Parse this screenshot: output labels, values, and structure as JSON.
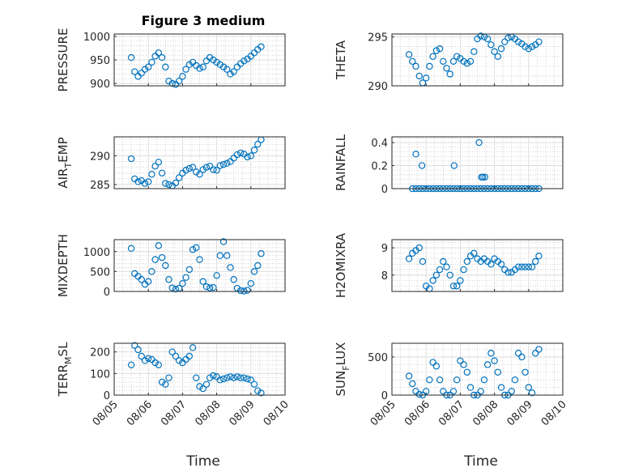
{
  "figure": {
    "title": "Figure 3 medium",
    "xlabel": "Time",
    "marker_color": "#0072BD",
    "grid": "major solid, minor dotted",
    "x_ticklabels": [
      "08/05",
      "08/06",
      "08/07",
      "08/08",
      "08/09",
      "08/10"
    ]
  },
  "chart_data": [
    {
      "id": "pressure",
      "type": "scatter",
      "ylabel": "PRESSURE",
      "ylim": [
        895,
        1005
      ],
      "yticks": [
        900,
        950,
        1000
      ],
      "x": [
        5.5,
        5.6,
        5.7,
        5.8,
        5.9,
        6.0,
        6.1,
        6.2,
        6.3,
        6.4,
        6.5,
        6.6,
        6.7,
        6.8,
        6.9,
        7.0,
        7.1,
        7.2,
        7.3,
        7.4,
        7.5,
        7.6,
        7.7,
        7.8,
        7.9,
        8.0,
        8.1,
        8.2,
        8.3,
        8.4,
        8.5,
        8.6,
        8.7,
        8.8,
        8.9,
        9.0,
        9.1,
        9.2,
        9.3
      ],
      "y": [
        955,
        925,
        915,
        922,
        930,
        935,
        945,
        958,
        965,
        955,
        935,
        905,
        900,
        898,
        905,
        915,
        930,
        940,
        945,
        938,
        932,
        935,
        948,
        955,
        950,
        945,
        940,
        935,
        930,
        920,
        925,
        935,
        942,
        948,
        952,
        958,
        965,
        972,
        978
      ]
    },
    {
      "id": "theta",
      "type": "scatter",
      "ylabel": "THETA",
      "ylim": [
        290,
        295.3
      ],
      "yticks": [
        290,
        295
      ],
      "x": [
        5.5,
        5.6,
        5.7,
        5.8,
        5.9,
        6.0,
        6.1,
        6.2,
        6.3,
        6.4,
        6.5,
        6.6,
        6.7,
        6.8,
        6.9,
        7.0,
        7.1,
        7.2,
        7.3,
        7.4,
        7.5,
        7.6,
        7.7,
        7.8,
        7.9,
        8.0,
        8.1,
        8.2,
        8.3,
        8.4,
        8.5,
        8.6,
        8.7,
        8.8,
        8.9,
        9.0,
        9.1,
        9.2,
        9.3
      ],
      "y": [
        293.2,
        292.5,
        292.0,
        291.0,
        290.3,
        290.8,
        292.0,
        293.0,
        293.6,
        293.8,
        292.5,
        291.8,
        291.2,
        292.5,
        293.0,
        292.8,
        292.5,
        292.3,
        292.5,
        293.5,
        294.8,
        295.1,
        295.0,
        294.8,
        294.2,
        293.5,
        293.0,
        293.8,
        294.5,
        294.9,
        295.0,
        294.8,
        294.5,
        294.3,
        294.0,
        293.8,
        294.0,
        294.2,
        294.5
      ]
    },
    {
      "id": "air_temp",
      "type": "scatter",
      "ylabel": "AIR_TEMP",
      "ylim": [
        284.3,
        293.3
      ],
      "yticks": [
        285,
        290
      ],
      "x": [
        5.5,
        5.6,
        5.7,
        5.8,
        5.9,
        6.0,
        6.1,
        6.2,
        6.3,
        6.4,
        6.5,
        6.6,
        6.7,
        6.8,
        6.9,
        7.0,
        7.1,
        7.2,
        7.3,
        7.4,
        7.5,
        7.6,
        7.7,
        7.8,
        7.9,
        8.0,
        8.1,
        8.2,
        8.3,
        8.4,
        8.5,
        8.6,
        8.7,
        8.8,
        8.9,
        9.0,
        9.1,
        9.2,
        9.3
      ],
      "y": [
        289.5,
        286.0,
        285.5,
        285.7,
        285.2,
        285.5,
        286.8,
        288.2,
        288.9,
        287.0,
        285.2,
        285.0,
        284.8,
        285.3,
        286.2,
        287.0,
        287.5,
        287.8,
        288.0,
        287.2,
        286.8,
        287.6,
        288.0,
        288.2,
        287.6,
        287.5,
        288.3,
        288.5,
        288.7,
        289.0,
        289.6,
        290.2,
        290.5,
        290.3,
        289.8,
        290.0,
        291.0,
        292.0,
        292.8
      ]
    },
    {
      "id": "rainfall",
      "type": "scatter",
      "ylabel": "RAINFALL",
      "ylim": [
        0,
        0.45
      ],
      "yticks": [
        0,
        0.2,
        0.4
      ],
      "yticklabels": [
        "0",
        "0.2",
        "0.4"
      ],
      "x": [
        5.6,
        5.7,
        5.8,
        5.9,
        6.0,
        6.1,
        6.2,
        6.3,
        6.4,
        6.5,
        6.6,
        6.7,
        6.8,
        6.9,
        7.0,
        7.1,
        7.2,
        7.3,
        7.4,
        7.5,
        7.6,
        7.7,
        7.8,
        7.9,
        8.0,
        8.1,
        8.2,
        8.3,
        8.4,
        8.5,
        8.6,
        8.7,
        8.8,
        8.9,
        9.0,
        9.1,
        9.2,
        9.3,
        5.7,
        5.88,
        6.82,
        7.55,
        7.62,
        7.66,
        7.72
      ],
      "y": [
        0,
        0,
        0,
        0,
        0,
        0,
        0,
        0,
        0,
        0,
        0,
        0,
        0,
        0,
        0,
        0,
        0,
        0,
        0,
        0,
        0,
        0,
        0,
        0,
        0,
        0,
        0,
        0,
        0,
        0,
        0,
        0,
        0,
        0,
        0,
        0,
        0,
        0,
        0.3,
        0.2,
        0.2,
        0.4,
        0.1,
        0.1,
        0.1
      ]
    },
    {
      "id": "mixdepth",
      "type": "scatter",
      "ylabel": "MIXDEPTH",
      "ylim": [
        0,
        1300
      ],
      "yticks": [
        0,
        500,
        1000
      ],
      "x": [
        5.5,
        5.6,
        5.7,
        5.8,
        5.9,
        6.0,
        6.1,
        6.2,
        6.3,
        6.4,
        6.5,
        6.6,
        6.7,
        6.8,
        6.9,
        7.0,
        7.1,
        7.2,
        7.3,
        7.4,
        7.5,
        7.6,
        7.7,
        7.8,
        7.9,
        8.0,
        8.1,
        8.2,
        8.3,
        8.4,
        8.5,
        8.6,
        8.7,
        8.8,
        8.9,
        9.0,
        9.1,
        9.2,
        9.3
      ],
      "y": [
        1080,
        450,
        380,
        300,
        180,
        250,
        500,
        800,
        1150,
        850,
        650,
        300,
        90,
        60,
        80,
        200,
        350,
        550,
        1050,
        1100,
        800,
        250,
        120,
        90,
        100,
        400,
        900,
        1250,
        900,
        600,
        300,
        80,
        20,
        10,
        30,
        200,
        500,
        650,
        950
      ]
    },
    {
      "id": "h2omixra",
      "type": "scatter",
      "ylabel": "H2OMIXRA",
      "ylim": [
        7.4,
        9.3
      ],
      "yticks": [
        8,
        9
      ],
      "x": [
        5.5,
        5.6,
        5.7,
        5.8,
        5.9,
        6.0,
        6.1,
        6.2,
        6.3,
        6.4,
        6.5,
        6.6,
        6.7,
        6.8,
        6.9,
        7.0,
        7.1,
        7.2,
        7.3,
        7.4,
        7.5,
        7.6,
        7.7,
        7.8,
        7.9,
        8.0,
        8.1,
        8.2,
        8.3,
        8.4,
        8.5,
        8.6,
        8.7,
        8.8,
        8.9,
        9.0,
        9.1,
        9.2,
        9.3
      ],
      "y": [
        8.6,
        8.8,
        8.9,
        9.0,
        8.5,
        7.6,
        7.5,
        7.8,
        8.0,
        8.2,
        8.5,
        8.3,
        8.0,
        7.6,
        7.6,
        7.8,
        8.2,
        8.5,
        8.7,
        8.8,
        8.6,
        8.5,
        8.6,
        8.5,
        8.4,
        8.6,
        8.5,
        8.4,
        8.2,
        8.1,
        8.1,
        8.2,
        8.3,
        8.3,
        8.3,
        8.3,
        8.3,
        8.5,
        8.7
      ]
    },
    {
      "id": "terr_msl",
      "type": "scatter",
      "ylabel": "TERR_MSL",
      "ylim": [
        0,
        240
      ],
      "yticks": [
        0,
        100,
        200
      ],
      "x": [
        5.5,
        5.6,
        5.7,
        5.8,
        5.9,
        6.0,
        6.1,
        6.2,
        6.3,
        6.4,
        6.5,
        6.6,
        6.7,
        6.8,
        6.9,
        7.0,
        7.1,
        7.2,
        7.3,
        7.4,
        7.5,
        7.6,
        7.7,
        7.8,
        7.9,
        8.0,
        8.1,
        8.2,
        8.3,
        8.4,
        8.5,
        8.6,
        8.7,
        8.8,
        8.9,
        9.0,
        9.1,
        9.2,
        9.3
      ],
      "y": [
        140,
        230,
        210,
        180,
        160,
        170,
        165,
        150,
        140,
        60,
        50,
        80,
        200,
        180,
        160,
        150,
        165,
        180,
        220,
        80,
        40,
        30,
        50,
        80,
        90,
        85,
        70,
        75,
        80,
        85,
        80,
        85,
        80,
        80,
        75,
        70,
        50,
        20,
        10
      ]
    },
    {
      "id": "sun_flux",
      "type": "scatter",
      "ylabel": "SUN_FLUX",
      "ylim": [
        0,
        680
      ],
      "yticks": [
        0,
        500
      ],
      "x": [
        5.5,
        5.6,
        5.7,
        5.8,
        5.9,
        6.0,
        6.1,
        6.2,
        6.3,
        6.4,
        6.5,
        6.6,
        6.7,
        6.8,
        6.9,
        7.0,
        7.1,
        7.2,
        7.3,
        7.4,
        7.5,
        7.6,
        7.7,
        7.8,
        7.9,
        8.0,
        8.1,
        8.2,
        8.3,
        8.4,
        8.5,
        8.6,
        8.7,
        8.8,
        8.9,
        9.0,
        9.1,
        9.2,
        9.3
      ],
      "y": [
        250,
        150,
        50,
        10,
        0,
        50,
        200,
        430,
        380,
        200,
        50,
        0,
        0,
        50,
        200,
        450,
        400,
        300,
        100,
        0,
        0,
        50,
        200,
        400,
        550,
        450,
        300,
        100,
        0,
        0,
        50,
        200,
        550,
        500,
        300,
        100,
        30,
        550,
        600
      ]
    }
  ]
}
